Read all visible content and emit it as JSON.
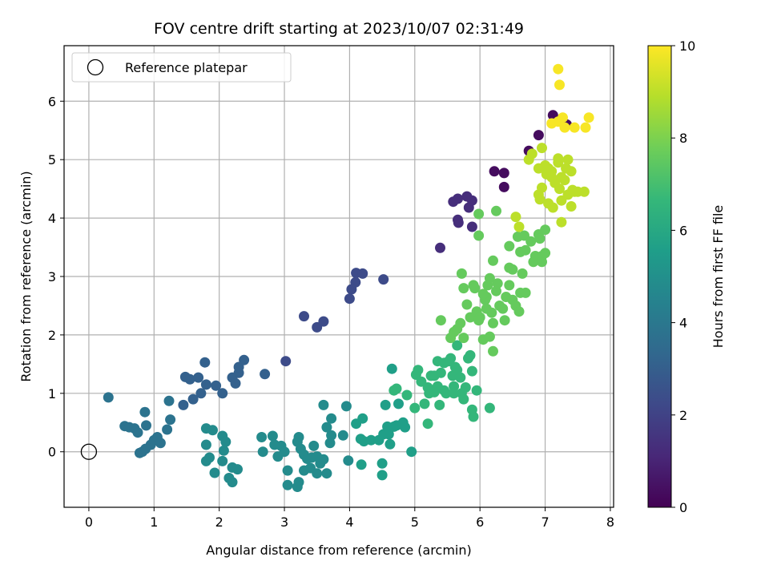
{
  "chart_data": {
    "type": "scatter",
    "title": "FOV centre drift starting at 2023/10/07 02:31:49",
    "xlabel": "Angular distance from reference (arcmin)",
    "ylabel": "Rotation from reference (arcmin)",
    "xlim": [
      -0.38,
      8.05
    ],
    "ylim": [
      -0.95,
      6.95
    ],
    "xticks": [
      0,
      1,
      2,
      3,
      4,
      5,
      6,
      7,
      8
    ],
    "yticks": [
      0,
      1,
      2,
      3,
      4,
      5,
      6
    ],
    "grid": true,
    "legend": {
      "placement": "top-left",
      "entries": [
        "Reference platepar"
      ]
    },
    "reference_point": {
      "name": "Reference platepar",
      "x": 0,
      "y": 0
    },
    "colorbar": {
      "label": "Hours from first FF file",
      "range": [
        0,
        10
      ],
      "ticks": [
        0,
        2,
        4,
        6,
        8,
        10
      ],
      "colormap": "viridis"
    },
    "colormap_stops": [
      "#440154",
      "#482878",
      "#3e4989",
      "#31688e",
      "#26828e",
      "#1f9e89",
      "#35b779",
      "#6ece58",
      "#b5de2b",
      "#fde725"
    ],
    "series": [
      {
        "hours": 0.3,
        "points": [
          [
            6.9,
            5.42
          ],
          [
            7.12,
            5.76
          ],
          [
            6.75,
            5.15
          ],
          [
            6.22,
            4.8
          ],
          [
            6.37,
            4.77
          ],
          [
            6.37,
            4.53
          ],
          [
            7.33,
            5.6
          ]
        ]
      },
      {
        "hours": 1.3,
        "points": [
          [
            5.59,
            4.28
          ],
          [
            5.66,
            4.33
          ],
          [
            5.66,
            3.97
          ],
          [
            5.67,
            3.92
          ],
          [
            5.8,
            4.37
          ],
          [
            5.83,
            4.18
          ],
          [
            5.88,
            4.3
          ],
          [
            5.88,
            3.85
          ],
          [
            5.39,
            3.49
          ]
        ]
      },
      {
        "hours": 2.3,
        "points": [
          [
            4.1,
            3.06
          ],
          [
            4.2,
            3.05
          ],
          [
            4.09,
            2.9
          ],
          [
            4.03,
            2.78
          ],
          [
            4.0,
            2.62
          ],
          [
            4.52,
            2.95
          ],
          [
            3.3,
            2.32
          ],
          [
            3.5,
            2.13
          ],
          [
            3.6,
            2.23
          ],
          [
            3.02,
            1.55
          ]
        ]
      },
      {
        "hours": 3.1,
        "points": [
          [
            1.78,
            1.53
          ],
          [
            1.48,
            1.28
          ],
          [
            1.55,
            1.24
          ],
          [
            1.68,
            1.27
          ],
          [
            1.8,
            1.15
          ],
          [
            1.95,
            1.13
          ],
          [
            1.72,
            1.0
          ],
          [
            2.05,
            1.0
          ],
          [
            1.45,
            0.8
          ],
          [
            1.6,
            0.9
          ],
          [
            2.2,
            1.27
          ],
          [
            2.3,
            1.35
          ],
          [
            2.25,
            1.17
          ],
          [
            2.3,
            1.45
          ],
          [
            2.38,
            1.57
          ],
          [
            2.7,
            1.33
          ]
        ]
      },
      {
        "hours": 3.8,
        "points": [
          [
            0.3,
            0.93
          ],
          [
            0.55,
            0.44
          ],
          [
            0.62,
            0.42
          ],
          [
            0.7,
            0.4
          ],
          [
            0.75,
            0.33
          ],
          [
            0.86,
            0.68
          ],
          [
            0.88,
            0.45
          ],
          [
            0.95,
            0.12
          ],
          [
            1.0,
            0.2
          ],
          [
            1.05,
            0.25
          ],
          [
            1.1,
            0.15
          ],
          [
            1.2,
            0.38
          ],
          [
            1.25,
            0.55
          ],
          [
            1.23,
            0.87
          ],
          [
            0.78,
            -0.02
          ],
          [
            0.82,
            0.0
          ],
          [
            0.87,
            0.05
          ]
        ]
      },
      {
        "hours": 4.8,
        "points": [
          [
            1.8,
            0.4
          ],
          [
            1.9,
            0.37
          ],
          [
            2.05,
            0.27
          ],
          [
            2.1,
            0.17
          ],
          [
            2.07,
            0.02
          ],
          [
            1.8,
            0.12
          ],
          [
            1.85,
            -0.1
          ],
          [
            1.8,
            -0.16
          ],
          [
            2.05,
            -0.16
          ],
          [
            1.93,
            -0.36
          ],
          [
            2.15,
            -0.45
          ],
          [
            2.2,
            -0.52
          ],
          [
            2.2,
            -0.27
          ],
          [
            2.28,
            -0.3
          ],
          [
            2.65,
            0.25
          ],
          [
            2.82,
            0.27
          ],
          [
            2.85,
            0.12
          ],
          [
            2.67,
            0.0
          ],
          [
            2.9,
            -0.08
          ],
          [
            2.95,
            0.1
          ],
          [
            3.0,
            0.0
          ],
          [
            3.05,
            -0.32
          ],
          [
            3.05,
            -0.57
          ],
          [
            3.2,
            -0.6
          ],
          [
            3.22,
            -0.52
          ],
          [
            3.2,
            0.17
          ],
          [
            3.25,
            0.05
          ],
          [
            3.3,
            -0.05
          ],
          [
            3.35,
            -0.12
          ],
          [
            3.4,
            -0.28
          ],
          [
            3.45,
            0.1
          ],
          [
            3.5,
            -0.37
          ],
          [
            3.55,
            -0.2
          ],
          [
            3.6,
            -0.13
          ],
          [
            3.65,
            -0.37
          ],
          [
            3.7,
            0.15
          ],
          [
            3.72,
            0.28
          ],
          [
            3.65,
            0.42
          ],
          [
            3.6,
            0.8
          ],
          [
            3.72,
            0.57
          ],
          [
            3.9,
            0.28
          ],
          [
            3.95,
            0.78
          ],
          [
            3.98,
            -0.15
          ],
          [
            3.22,
            0.25
          ],
          [
            3.3,
            -0.32
          ],
          [
            3.42,
            -0.1
          ],
          [
            3.5,
            -0.08
          ]
        ]
      },
      {
        "hours": 5.6,
        "points": [
          [
            4.1,
            0.48
          ],
          [
            4.2,
            0.57
          ],
          [
            4.17,
            0.22
          ],
          [
            4.22,
            0.18
          ],
          [
            4.33,
            0.2
          ],
          [
            4.45,
            0.2
          ],
          [
            4.52,
            0.3
          ],
          [
            4.58,
            0.43
          ],
          [
            4.6,
            0.3
          ],
          [
            4.62,
            0.13
          ],
          [
            4.5,
            -0.2
          ],
          [
            4.5,
            -0.4
          ],
          [
            4.68,
            0.43
          ],
          [
            4.72,
            0.45
          ],
          [
            4.75,
            0.82
          ],
          [
            4.82,
            0.5
          ],
          [
            4.85,
            0.42
          ],
          [
            4.55,
            0.8
          ],
          [
            4.18,
            -0.22
          ],
          [
            4.95,
            0.0
          ],
          [
            4.65,
            1.42
          ]
        ]
      },
      {
        "hours": 6.6,
        "points": [
          [
            4.68,
            1.05
          ],
          [
            4.72,
            1.08
          ],
          [
            4.88,
            0.97
          ],
          [
            5.0,
            0.75
          ],
          [
            5.02,
            1.32
          ],
          [
            5.05,
            1.4
          ],
          [
            5.1,
            1.2
          ],
          [
            5.15,
            0.82
          ],
          [
            5.2,
            0.48
          ],
          [
            5.22,
            1.0
          ],
          [
            5.25,
            1.3
          ],
          [
            5.3,
            1.3
          ],
          [
            5.35,
            1.12
          ],
          [
            5.35,
            1.55
          ],
          [
            5.38,
            0.8
          ],
          [
            5.4,
            1.35
          ],
          [
            5.45,
            1.52
          ],
          [
            5.45,
            1.05
          ],
          [
            5.48,
            1.0
          ],
          [
            5.52,
            1.55
          ],
          [
            5.55,
            1.6
          ],
          [
            5.58,
            1.3
          ],
          [
            5.6,
            1.12
          ],
          [
            5.6,
            1.0
          ],
          [
            5.62,
            1.45
          ],
          [
            5.65,
            1.82
          ],
          [
            5.65,
            1.4
          ],
          [
            5.7,
            1.27
          ],
          [
            5.72,
            1.0
          ],
          [
            5.75,
            0.9
          ],
          [
            5.78,
            1.1
          ],
          [
            5.82,
            1.6
          ],
          [
            5.85,
            1.65
          ],
          [
            5.88,
            1.38
          ],
          [
            5.88,
            0.72
          ],
          [
            5.9,
            0.6
          ],
          [
            5.95,
            1.05
          ],
          [
            6.15,
            0.75
          ],
          [
            5.3,
            1.02
          ],
          [
            5.2,
            1.1
          ]
        ]
      },
      {
        "hours": 7.6,
        "points": [
          [
            5.4,
            2.25
          ],
          [
            5.55,
            1.95
          ],
          [
            5.6,
            2.05
          ],
          [
            5.65,
            2.1
          ],
          [
            5.7,
            2.2
          ],
          [
            5.75,
            1.95
          ],
          [
            5.72,
            3.05
          ],
          [
            5.75,
            2.8
          ],
          [
            5.8,
            2.52
          ],
          [
            5.85,
            2.3
          ],
          [
            5.9,
            2.85
          ],
          [
            5.92,
            2.8
          ],
          [
            5.95,
            2.4
          ],
          [
            5.98,
            4.07
          ],
          [
            5.98,
            3.7
          ],
          [
            6.0,
            2.3
          ],
          [
            6.05,
            1.92
          ],
          [
            6.08,
            2.6
          ],
          [
            6.1,
            2.65
          ],
          [
            6.12,
            2.85
          ],
          [
            6.15,
            2.97
          ],
          [
            6.15,
            1.97
          ],
          [
            6.2,
            1.72
          ],
          [
            6.2,
            2.2
          ],
          [
            6.25,
            2.75
          ],
          [
            6.25,
            4.12
          ],
          [
            6.27,
            2.88
          ],
          [
            6.3,
            2.5
          ],
          [
            6.35,
            2.45
          ],
          [
            6.38,
            2.25
          ],
          [
            6.4,
            2.65
          ],
          [
            6.45,
            2.85
          ],
          [
            6.45,
            3.52
          ],
          [
            6.45,
            3.15
          ],
          [
            6.5,
            2.6
          ],
          [
            6.5,
            3.12
          ],
          [
            6.55,
            2.5
          ],
          [
            6.58,
            3.68
          ],
          [
            6.6,
            2.4
          ],
          [
            6.62,
            2.72
          ],
          [
            6.62,
            3.42
          ],
          [
            6.65,
            3.05
          ],
          [
            6.68,
            3.7
          ],
          [
            6.7,
            3.45
          ],
          [
            6.7,
            2.72
          ],
          [
            6.78,
            3.6
          ],
          [
            6.82,
            3.25
          ],
          [
            6.85,
            3.35
          ],
          [
            6.9,
            3.72
          ],
          [
            6.92,
            3.65
          ],
          [
            6.95,
            3.35
          ],
          [
            6.95,
            3.25
          ],
          [
            7.0,
            3.8
          ],
          [
            7.0,
            3.4
          ],
          [
            6.2,
            3.27
          ],
          [
            6.05,
            2.7
          ],
          [
            5.98,
            2.25
          ],
          [
            6.1,
            2.45
          ],
          [
            6.18,
            2.38
          ]
        ]
      },
      {
        "hours": 9.0,
        "points": [
          [
            6.55,
            4.02
          ],
          [
            6.6,
            3.85
          ],
          [
            6.75,
            5.0
          ],
          [
            6.8,
            5.1
          ],
          [
            6.9,
            4.85
          ],
          [
            6.9,
            4.4
          ],
          [
            6.92,
            4.32
          ],
          [
            6.95,
            5.2
          ],
          [
            7.0,
            4.9
          ],
          [
            7.02,
            4.75
          ],
          [
            7.05,
            4.25
          ],
          [
            7.05,
            4.85
          ],
          [
            7.1,
            4.8
          ],
          [
            7.12,
            4.18
          ],
          [
            7.15,
            4.6
          ],
          [
            7.2,
            4.95
          ],
          [
            7.22,
            4.5
          ],
          [
            7.25,
            4.3
          ],
          [
            7.25,
            3.93
          ],
          [
            7.3,
            4.65
          ],
          [
            7.32,
            4.85
          ],
          [
            7.35,
            4.4
          ],
          [
            7.4,
            4.2
          ],
          [
            7.42,
            4.48
          ],
          [
            7.45,
            4.45
          ],
          [
            7.5,
            4.45
          ],
          [
            7.6,
            4.45
          ],
          [
            7.2,
            5.02
          ],
          [
            7.35,
            5.0
          ],
          [
            7.4,
            4.8
          ],
          [
            7.1,
            4.7
          ],
          [
            6.95,
            4.52
          ],
          [
            7.25,
            4.7
          ]
        ]
      },
      {
        "hours": 9.9,
        "points": [
          [
            7.2,
            6.55
          ],
          [
            7.22,
            6.28
          ],
          [
            7.2,
            5.65
          ],
          [
            7.27,
            5.72
          ],
          [
            7.3,
            5.55
          ],
          [
            7.45,
            5.55
          ],
          [
            7.62,
            5.55
          ],
          [
            7.67,
            5.72
          ],
          [
            7.1,
            5.62
          ]
        ]
      }
    ]
  }
}
